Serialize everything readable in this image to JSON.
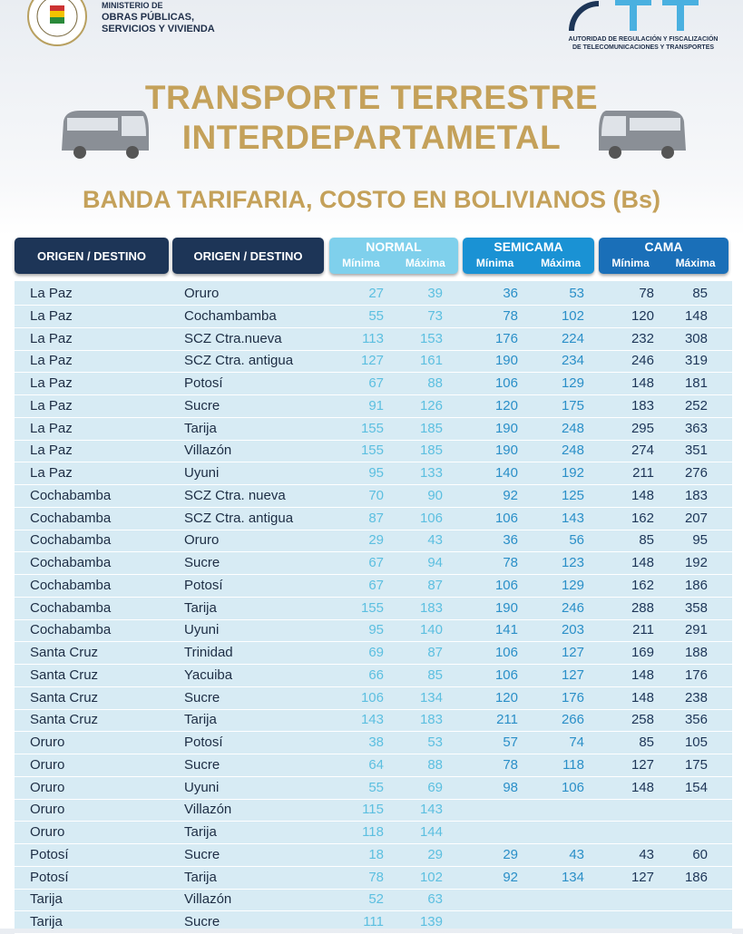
{
  "header": {
    "ministry": [
      "MINISTERIO DE",
      "OBRAS PÚBLICAS,",
      "SERVICIOS Y VIVIENDA"
    ],
    "authority": [
      "AUTORIDAD DE REGULACIÓN Y FISCALIZACIÓN",
      "DE TELECOMUNICACIONES Y TRANSPORTES"
    ],
    "title": [
      "TRANSPORTE TERRESTRE",
      "INTERDEPARTAMETAL"
    ],
    "subtitle": "BANDA TARIFARIA, COSTO EN BOLIVIANOS (Bs)"
  },
  "table": {
    "columns": [
      "ORIGEN / DESTINO",
      "ORIGEN / DESTINO"
    ],
    "groups": [
      "NORMAL",
      "SEMICAMA",
      "CAMA"
    ],
    "subcolumns": [
      "Mínima",
      "Máxima"
    ],
    "rows": [
      {
        "origin": "La Paz",
        "destination": "Oruro",
        "normal": [
          27,
          39
        ],
        "semicama": [
          36,
          53
        ],
        "cama": [
          78,
          85
        ]
      },
      {
        "origin": "La Paz",
        "destination": "Cochambamba",
        "normal": [
          55,
          73
        ],
        "semicama": [
          78,
          102
        ],
        "cama": [
          120,
          148
        ]
      },
      {
        "origin": "La Paz",
        "destination": "SCZ Ctra.nueva",
        "normal": [
          113,
          153
        ],
        "semicama": [
          176,
          224
        ],
        "cama": [
          232,
          308
        ]
      },
      {
        "origin": "La Paz",
        "destination": "SCZ Ctra. antigua",
        "normal": [
          127,
          161
        ],
        "semicama": [
          190,
          234
        ],
        "cama": [
          246,
          319
        ]
      },
      {
        "origin": "La Paz",
        "destination": "Potosí",
        "normal": [
          67,
          88
        ],
        "semicama": [
          106,
          129
        ],
        "cama": [
          148,
          181
        ]
      },
      {
        "origin": "La Paz",
        "destination": "Sucre",
        "normal": [
          91,
          126
        ],
        "semicama": [
          120,
          175
        ],
        "cama": [
          183,
          252
        ]
      },
      {
        "origin": "La Paz",
        "destination": "Tarija",
        "normal": [
          155,
          185
        ],
        "semicama": [
          190,
          248
        ],
        "cama": [
          295,
          363
        ]
      },
      {
        "origin": "La Paz",
        "destination": "Villazón",
        "normal": [
          155,
          185
        ],
        "semicama": [
          190,
          248
        ],
        "cama": [
          274,
          351
        ]
      },
      {
        "origin": "La Paz",
        "destination": "Uyuni",
        "normal": [
          95,
          133
        ],
        "semicama": [
          140,
          192
        ],
        "cama": [
          211,
          276
        ]
      },
      {
        "origin": "Cochabamba",
        "destination": "SCZ Ctra. nueva",
        "normal": [
          70,
          90
        ],
        "semicama": [
          92,
          125
        ],
        "cama": [
          148,
          183
        ]
      },
      {
        "origin": "Cochabamba",
        "destination": "SCZ Ctra. antigua",
        "normal": [
          87,
          106
        ],
        "semicama": [
          106,
          143
        ],
        "cama": [
          162,
          207
        ]
      },
      {
        "origin": "Cochabamba",
        "destination": "Oruro",
        "normal": [
          29,
          43
        ],
        "semicama": [
          36,
          56
        ],
        "cama": [
          85,
          95
        ]
      },
      {
        "origin": "Cochabamba",
        "destination": "Sucre",
        "normal": [
          67,
          94
        ],
        "semicama": [
          78,
          123
        ],
        "cama": [
          148,
          192
        ]
      },
      {
        "origin": "Cochabamba",
        "destination": "Potosí",
        "normal": [
          67,
          87
        ],
        "semicama": [
          106,
          129
        ],
        "cama": [
          162,
          186
        ]
      },
      {
        "origin": "Cochabamba",
        "destination": "Tarija",
        "normal": [
          155,
          183
        ],
        "semicama": [
          190,
          246
        ],
        "cama": [
          288,
          358
        ]
      },
      {
        "origin": "Cochabamba",
        "destination": "Uyuni",
        "normal": [
          95,
          140
        ],
        "semicama": [
          141,
          203
        ],
        "cama": [
          211,
          291
        ]
      },
      {
        "origin": "Santa Cruz",
        "destination": "Trinidad",
        "normal": [
          69,
          87
        ],
        "semicama": [
          106,
          127
        ],
        "cama": [
          169,
          188
        ]
      },
      {
        "origin": "Santa Cruz",
        "destination": "Yacuiba",
        "normal": [
          66,
          85
        ],
        "semicama": [
          106,
          127
        ],
        "cama": [
          148,
          176
        ]
      },
      {
        "origin": "Santa Cruz",
        "destination": "Sucre",
        "normal": [
          106,
          134
        ],
        "semicama": [
          120,
          176
        ],
        "cama": [
          148,
          238
        ]
      },
      {
        "origin": "Santa Cruz",
        "destination": "Tarija",
        "normal": [
          143,
          183
        ],
        "semicama": [
          211,
          266
        ],
        "cama": [
          258,
          356
        ]
      },
      {
        "origin": "Oruro",
        "destination": "Potosí",
        "normal": [
          38,
          53
        ],
        "semicama": [
          57,
          74
        ],
        "cama": [
          85,
          105
        ]
      },
      {
        "origin": "Oruro",
        "destination": "Sucre",
        "normal": [
          64,
          88
        ],
        "semicama": [
          78,
          118
        ],
        "cama": [
          127,
          175
        ]
      },
      {
        "origin": "Oruro",
        "destination": "Uyuni",
        "normal": [
          55,
          69
        ],
        "semicama": [
          98,
          106
        ],
        "cama": [
          148,
          154
        ]
      },
      {
        "origin": "Oruro",
        "destination": "Villazón",
        "normal": [
          115,
          143
        ]
      },
      {
        "origin": "Oruro",
        "destination": "Tarija",
        "normal": [
          118,
          144
        ]
      },
      {
        "origin": "Potosí",
        "destination": "Sucre",
        "normal": [
          18,
          29
        ],
        "semicama": [
          29,
          43
        ],
        "cama": [
          43,
          60
        ]
      },
      {
        "origin": "Potosí",
        "destination": "Tarija",
        "normal": [
          78,
          102
        ],
        "semicama": [
          92,
          134
        ],
        "cama": [
          127,
          186
        ]
      },
      {
        "origin": "Tarija",
        "destination": "Villazón",
        "normal": [
          52,
          63
        ]
      },
      {
        "origin": "Tarija",
        "destination": "Sucre",
        "normal": [
          111,
          139
        ]
      }
    ]
  }
}
